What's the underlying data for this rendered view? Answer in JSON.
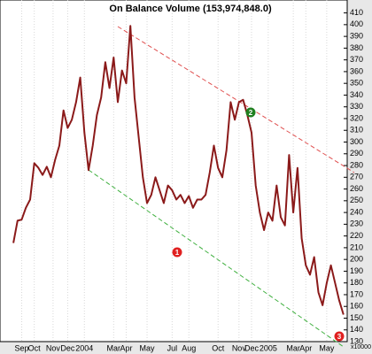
{
  "chart_data": {
    "type": "line",
    "title": "On Balance Volume (153,974,848.0)",
    "axis_note": "x10000",
    "x": [
      0,
      1,
      2,
      3,
      4,
      5,
      6,
      7,
      8,
      9,
      10,
      11,
      12,
      13,
      14,
      15,
      16,
      17,
      18,
      19,
      20,
      21,
      22,
      23,
      24,
      25,
      26,
      27,
      28,
      29,
      30,
      31,
      32,
      33,
      34,
      35,
      36,
      37,
      38,
      39,
      40,
      41,
      42,
      43,
      44,
      45,
      46,
      47,
      48,
      49,
      50,
      51,
      52,
      53,
      54,
      55,
      56,
      57,
      58,
      59,
      60,
      61,
      62,
      63,
      64,
      65,
      66,
      67,
      68,
      69,
      70,
      71,
      72,
      73,
      74,
      75,
      76,
      77,
      78,
      79
    ],
    "series": [
      {
        "name": "On Balance Volume",
        "color": "#8b1a1a",
        "values": [
          214,
          233,
          234,
          244,
          251,
          282,
          278,
          272,
          279,
          270,
          285,
          297,
          327,
          312,
          319,
          334,
          355,
          308,
          276,
          297,
          323,
          338,
          368,
          346,
          372,
          334,
          361,
          350,
          399,
          338,
          304,
          270,
          248,
          255,
          270,
          259,
          248,
          263,
          259,
          251,
          255,
          248,
          254,
          244,
          251,
          251,
          255,
          274,
          297,
          278,
          270,
          293,
          334,
          319,
          334,
          336,
          323,
          308,
          263,
          240,
          225,
          240,
          233,
          263,
          236,
          229,
          289,
          240,
          278,
          218,
          195,
          187,
          202,
          172,
          161,
          180,
          195,
          180,
          165,
          153
        ]
      }
    ],
    "xlim": [
      -3.2,
      79.9
    ],
    "xticks": [
      {
        "value": 2,
        "label": "Sep"
      },
      {
        "value": 5,
        "label": "Oct"
      },
      {
        "value": 9.5,
        "label": "Nov"
      },
      {
        "value": 13,
        "label": "Dec"
      },
      {
        "value": 17,
        "label": "2004"
      },
      {
        "value": 24,
        "label": "Mar"
      },
      {
        "value": 27,
        "label": "Apr"
      },
      {
        "value": 32,
        "label": "May"
      },
      {
        "value": 38,
        "label": "Jul"
      },
      {
        "value": 42,
        "label": "Aug"
      },
      {
        "value": 49,
        "label": "Oct"
      },
      {
        "value": 54,
        "label": "Nov"
      },
      {
        "value": 57,
        "label": "Dec"
      },
      {
        "value": 61,
        "label": "2005"
      },
      {
        "value": 67,
        "label": "Mar"
      },
      {
        "value": 70,
        "label": "Apr"
      },
      {
        "value": 75,
        "label": "May"
      }
    ],
    "ylim": [
      127,
      421
    ],
    "yticks": [
      130,
      140,
      150,
      160,
      170,
      180,
      190,
      200,
      210,
      220,
      230,
      240,
      250,
      260,
      270,
      280,
      290,
      300,
      310,
      320,
      330,
      340,
      350,
      360,
      370,
      380,
      390,
      400,
      410
    ],
    "annotations": [
      "1",
      "2",
      "3"
    ]
  }
}
